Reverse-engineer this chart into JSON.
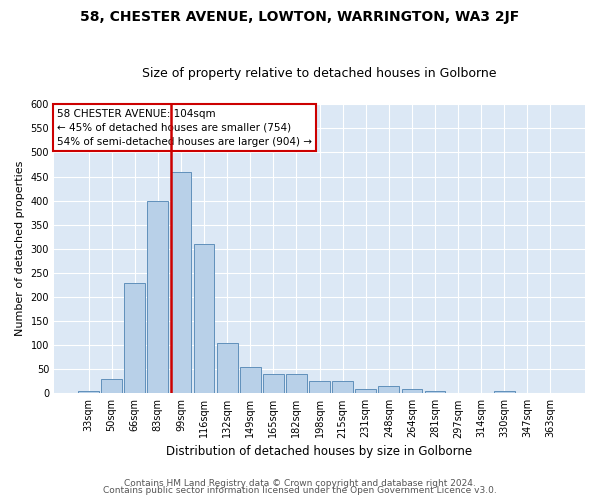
{
  "title": "58, CHESTER AVENUE, LOWTON, WARRINGTON, WA3 2JF",
  "subtitle": "Size of property relative to detached houses in Golborne",
  "xlabel": "Distribution of detached houses by size in Golborne",
  "ylabel": "Number of detached properties",
  "categories": [
    "33sqm",
    "50sqm",
    "66sqm",
    "83sqm",
    "99sqm",
    "116sqm",
    "132sqm",
    "149sqm",
    "165sqm",
    "182sqm",
    "198sqm",
    "215sqm",
    "231sqm",
    "248sqm",
    "264sqm",
    "281sqm",
    "297sqm",
    "314sqm",
    "330sqm",
    "347sqm",
    "363sqm"
  ],
  "bar_values": [
    5,
    30,
    230,
    400,
    460,
    310,
    105,
    55,
    40,
    40,
    25,
    25,
    10,
    15,
    10,
    5,
    0,
    0,
    5,
    0,
    0
  ],
  "bar_color": "#b8d0e8",
  "bar_edge_color": "#6090bb",
  "ylim": [
    0,
    600
  ],
  "yticks": [
    0,
    50,
    100,
    150,
    200,
    250,
    300,
    350,
    400,
    450,
    500,
    550,
    600
  ],
  "property_line_color": "#cc0000",
  "annotation_text": "58 CHESTER AVENUE: 104sqm\n← 45% of detached houses are smaller (754)\n54% of semi-detached houses are larger (904) →",
  "annotation_box_color": "#ffffff",
  "annotation_box_edge": "#cc0000",
  "plot_bg_color": "#dce8f5",
  "footer1": "Contains HM Land Registry data © Crown copyright and database right 2024.",
  "footer2": "Contains public sector information licensed under the Open Government Licence v3.0.",
  "title_fontsize": 10,
  "subtitle_fontsize": 9,
  "xlabel_fontsize": 8.5,
  "ylabel_fontsize": 8,
  "tick_fontsize": 7,
  "annotation_fontsize": 7.5,
  "footer_fontsize": 6.5
}
